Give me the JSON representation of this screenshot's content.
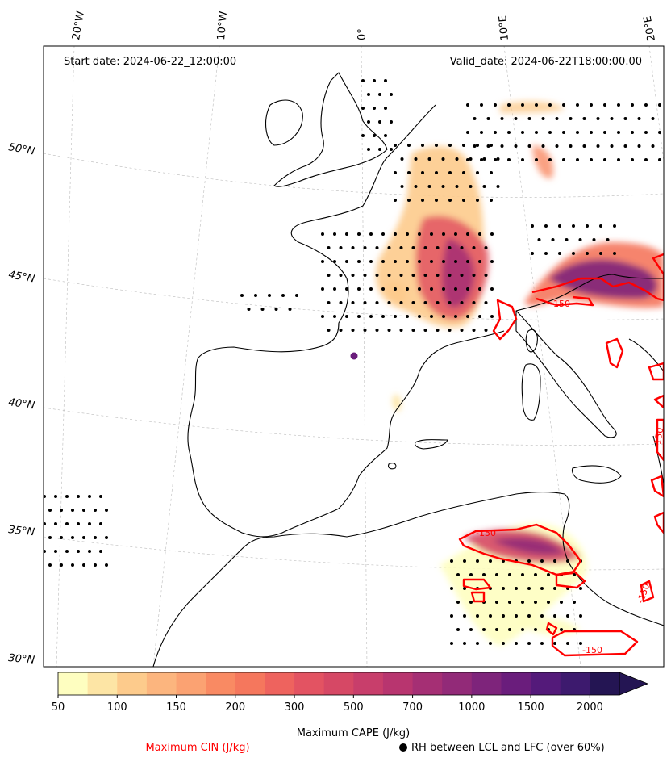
{
  "header": {
    "start_date": "Start date: 2024-06-22_12:00:00",
    "valid_date": "Valid_date: 2024-06-22T18:00:00.00"
  },
  "graticule": {
    "lon_labels": [
      "20°W",
      "10°W",
      "0°",
      "10°E",
      "20°E"
    ],
    "lat_labels": [
      "50°N",
      "45°N",
      "40°N",
      "35°N",
      "30°N"
    ]
  },
  "colorbar": {
    "title": "Maximum CAPE (J/kg)",
    "tick_labels": [
      "50",
      "100",
      "150",
      "200",
      "300",
      "500",
      "700",
      "1000",
      "1500",
      "2000"
    ],
    "colors": [
      "#fefec0",
      "#fde5a5",
      "#fdcb8c",
      "#fcb57e",
      "#fba272",
      "#f98a63",
      "#f5775d",
      "#ee635e",
      "#e35362",
      "#d64865",
      "#c83e6b",
      "#b8356f",
      "#a52f74",
      "#922a78",
      "#7e247b",
      "#6a1d7c",
      "#541a7a",
      "#3d1a6e",
      "#241553"
    ]
  },
  "legend": {
    "cin_label": "Maximum CIN (J/kg)",
    "rh_label": "RH between LCL and LFC (over 60%)",
    "cin_color": "#ff0000",
    "rh_marker": "filled-circle-marker"
  },
  "contour_labels": [
    "-150",
    "-150",
    "-150",
    "-150",
    "-150"
  ]
}
